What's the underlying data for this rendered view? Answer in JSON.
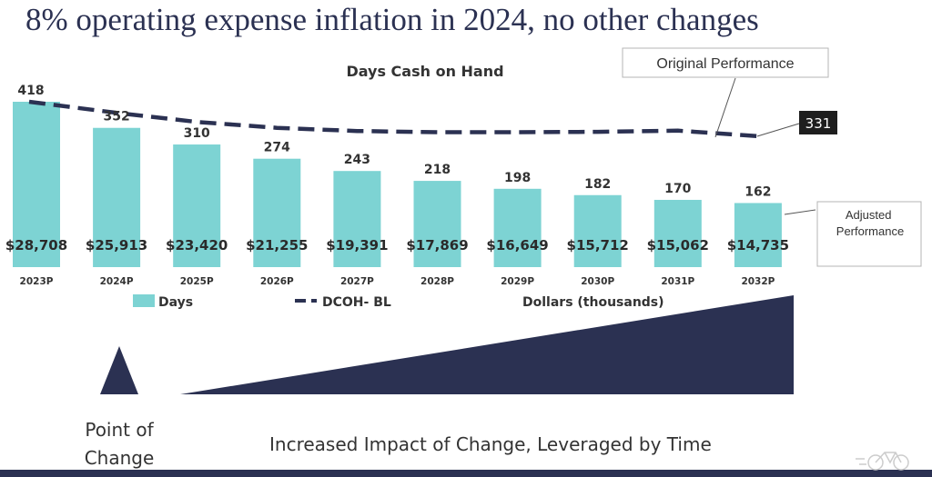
{
  "slide_title": "8% operating expense inflation in 2024, no other changes",
  "colors": {
    "bars": "#7dd3d3",
    "line": "#2b3152",
    "navy": "#2b3152",
    "text": "#333333"
  },
  "chart_data": {
    "type": "bar",
    "title": "Days Cash on Hand",
    "categories": [
      "2023P",
      "2024P",
      "2025P",
      "2026P",
      "2027P",
      "2028P",
      "2029P",
      "2030P",
      "2031P",
      "2032P"
    ],
    "series": [
      {
        "name": "Days",
        "kind": "bar",
        "values": [
          418,
          352,
          310,
          274,
          243,
          218,
          198,
          182,
          170,
          162
        ]
      },
      {
        "name": "DCOH- BL",
        "kind": "line-dashed",
        "values": [
          418,
          390,
          367,
          352,
          344,
          341,
          341,
          342,
          345,
          331
        ]
      }
    ],
    "bar_amounts": [
      "$28,708",
      "$25,913",
      "$23,420",
      "$21,255",
      "$19,391",
      "$17,869",
      "$16,649",
      "$15,712",
      "$15,062",
      "$14,735"
    ],
    "legend": [
      "Days",
      "DCOH- BL",
      "Dollars (thousands)"
    ],
    "legend_position": "bottom",
    "final_line_label": "331",
    "callouts": {
      "original": "Original Performance",
      "adjusted": "Adjusted Performance"
    },
    "ylim": [
      0,
      450
    ],
    "grid": false
  },
  "diagram": {
    "point_label": "Point of Change",
    "impact_label": "Increased Impact of Change, Leveraged by Time"
  }
}
